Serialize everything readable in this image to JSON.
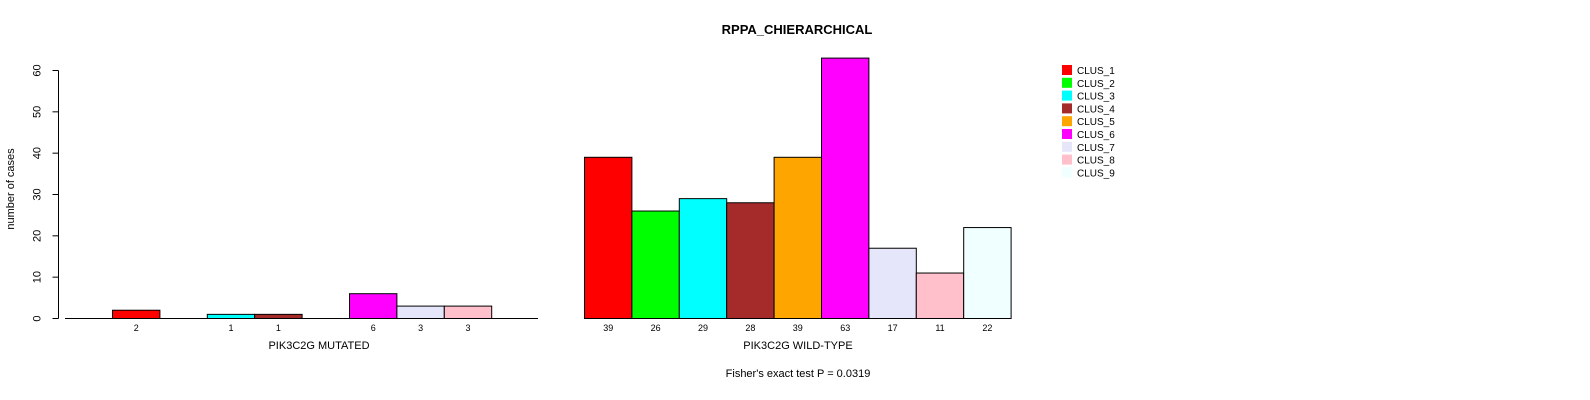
{
  "chart_data": {
    "type": "bar",
    "title": "RPPA_CHIERARCHICAL",
    "ylabel": "number of cases",
    "ylim": [
      0,
      60
    ],
    "yticks": [
      0,
      10,
      20,
      30,
      40,
      50,
      60
    ],
    "footer": "Fisher's exact test P = 0.0319",
    "clusters": [
      "CLUS_1",
      "CLUS_2",
      "CLUS_3",
      "CLUS_4",
      "CLUS_5",
      "CLUS_6",
      "CLUS_7",
      "CLUS_8",
      "CLUS_9"
    ],
    "colors": [
      "#ff0000",
      "#00ff00",
      "#00ffff",
      "#a52a2a",
      "#ffa500",
      "#ff00ff",
      "#e6e6fa",
      "#ffc0cb",
      "#f0ffff"
    ],
    "groups": [
      {
        "name": "PIK3C2G MUTATED",
        "values": [
          2,
          0,
          1,
          1,
          0,
          6,
          3,
          3,
          0
        ]
      },
      {
        "name": "PIK3C2G WILD-TYPE",
        "values": [
          39,
          26,
          29,
          28,
          39,
          63,
          17,
          11,
          22
        ]
      }
    ],
    "legend": {
      "position": "top-right",
      "entries": [
        "CLUS_1",
        "CLUS_2",
        "CLUS_3",
        "CLUS_4",
        "CLUS_5",
        "CLUS_6",
        "CLUS_7",
        "CLUS_8",
        "CLUS_9"
      ]
    }
  }
}
